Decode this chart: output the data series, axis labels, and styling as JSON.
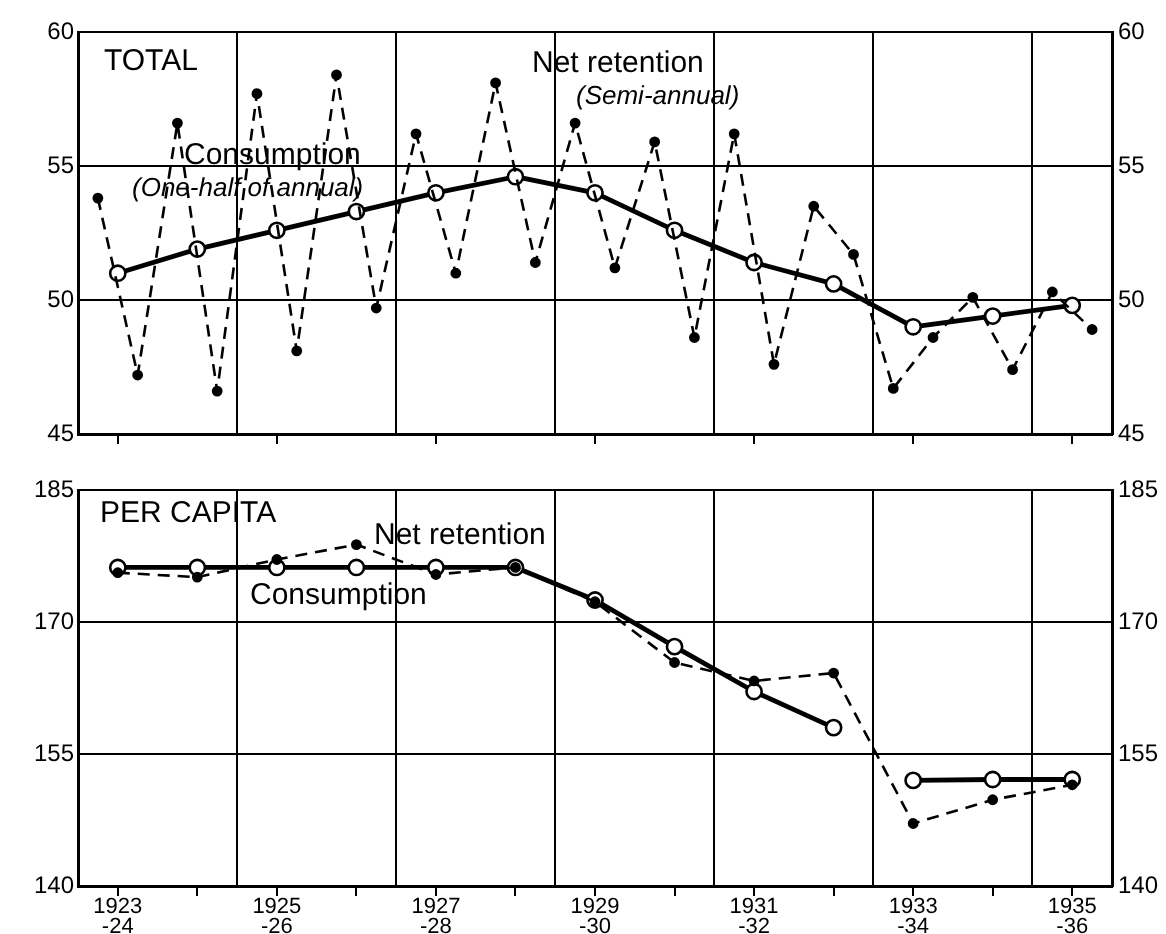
{
  "chart_data": [
    {
      "type": "line",
      "title": "TOTAL",
      "xlim": [
        1922.5,
        1935.5
      ],
      "tick_labels": "y",
      "xticks": [
        1923,
        {
          "value": 1924.5,
          "label": null
        },
        1925,
        {
          "value": 1926.5,
          "label": null
        },
        1927,
        {
          "value": 1928.5,
          "label": null
        },
        1929,
        {
          "value": 1930.5,
          "label": null
        },
        1931,
        {
          "value": 1932.5,
          "label": null
        },
        1933,
        {
          "value": 1934.5,
          "label": null
        },
        1935
      ],
      "ylim": [
        45,
        60
      ],
      "yticks": [
        45,
        50,
        55,
        60
      ],
      "y2lim": [
        45,
        60
      ],
      "y2ticks": [
        45,
        50,
        55,
        60
      ],
      "grid": true,
      "legend": false,
      "series": [
        {
          "name": "Net retention (Semi-annual)",
          "color": "#000000",
          "line_style": "dashed",
          "marker": "circle",
          "x": [
            1922.75,
            1923.25,
            1923.75,
            1924.25,
            1924.75,
            1925.25,
            1925.75,
            1926.25,
            1926.75,
            1927.25,
            1927.75,
            1928.25,
            1928.75,
            1929.25,
            1929.75,
            1930.25,
            1930.75,
            1931.25,
            1931.75,
            1932.25,
            1932.75,
            1933.25,
            1933.75,
            1934.25,
            1934.75,
            1935.25
          ],
          "values": [
            53.8,
            47.2,
            56.6,
            46.6,
            57.7,
            48.1,
            58.4,
            49.7,
            56.2,
            51.0,
            58.1,
            51.4,
            56.6,
            51.2,
            55.9,
            48.6,
            56.2,
            47.6,
            53.5,
            51.7,
            46.7,
            48.6,
            50.1,
            47.4,
            50.3,
            48.9
          ]
        },
        {
          "name": "Consumption (One-half of annual)",
          "color": "#000000",
          "line_style": "solid",
          "marker": "circle",
          "x": [
            1923,
            1924,
            1925,
            1926,
            1927,
            1928,
            1929,
            1930,
            1931,
            1932,
            1933,
            1934,
            1935
          ],
          "values": [
            51.0,
            51.9,
            52.6,
            53.3,
            54.0,
            54.6,
            54.0,
            52.6,
            51.4,
            50.6,
            49.0,
            49.4,
            49.8
          ]
        }
      ]
    },
    {
      "type": "line",
      "title": "PER CAPITA",
      "categories": [
        "1923-24",
        null,
        "1925-26",
        null,
        "1927-28",
        null,
        "1929-30",
        null,
        "1931-32",
        null,
        "1933-34",
        null,
        "1935-36"
      ],
      "ylim": [
        140,
        185
      ],
      "yticks": [
        140,
        155,
        170,
        185
      ],
      "y2lim": [
        140,
        185
      ],
      "y2ticks": [
        140,
        155,
        170,
        185
      ],
      "grid": true,
      "legend": false,
      "series": [
        {
          "name": "Net retention",
          "color": "#000000",
          "line_style": "dashed",
          "marker": "circle",
          "values": [
            175.6,
            175.1,
            177.1,
            178.8,
            175.4,
            176.2,
            172.3,
            165.4,
            163.3,
            164.2,
            147.1,
            149.8,
            151.5
          ]
        },
        {
          "name": "Consumption",
          "color": "#000000",
          "line_style": "solid",
          "marker": "circle",
          "values": [
            176.2,
            176.2,
            176.2,
            176.2,
            176.2,
            176.2,
            172.5,
            167.2,
            162.1,
            158.0,
            null,
            null,
            null
          ]
        },
        {
          "color": "#000000",
          "line_style": "solid",
          "marker": "circle",
          "values": [
            null,
            null,
            null,
            null,
            null,
            null,
            null,
            null,
            null,
            null,
            152.0,
            152.1,
            152.1
          ]
        }
      ]
    }
  ]
}
